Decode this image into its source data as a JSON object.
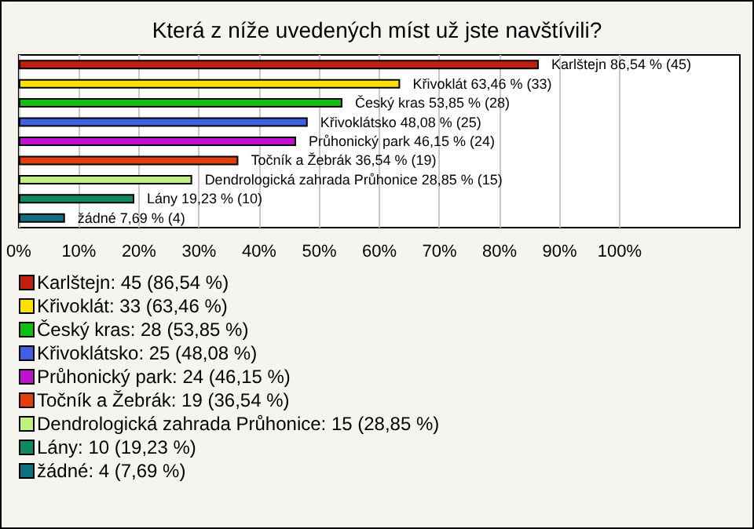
{
  "chart_data": {
    "type": "bar",
    "orientation": "horizontal",
    "title": "Která z níže uvedených míst už jste navštívili?",
    "categories": [
      null,
      null,
      null,
      null,
      null,
      null,
      null,
      null,
      null
    ],
    "xlim": [
      0,
      120
    ],
    "xticks": [
      {
        "value": 0,
        "label": "0%"
      },
      {
        "value": 10,
        "label": "10%"
      },
      {
        "value": 20,
        "label": "20%"
      },
      {
        "value": 30,
        "label": "30%"
      },
      {
        "value": 40,
        "label": "40%"
      },
      {
        "value": 50,
        "label": "50%"
      },
      {
        "value": 60,
        "label": "60%"
      },
      {
        "value": 70,
        "label": "70%"
      },
      {
        "value": 80,
        "label": "80%"
      },
      {
        "value": 90,
        "label": "90%"
      },
      {
        "value": 100,
        "label": "100%"
      }
    ],
    "grid": "x",
    "legend": "bottom",
    "series": [
      {
        "name": "Karlštejn: 45 (86,54 %)",
        "color": "#c0200f",
        "values": [
          86.54,
          null,
          null,
          null,
          null,
          null,
          null,
          null,
          null
        ],
        "value_labels": [
          "Karlštejn 86,54 % (45)",
          null,
          null,
          null,
          null,
          null,
          null,
          null,
          null
        ]
      },
      {
        "name": "Křivoklát: 33 (63,46 %)",
        "color": "#ffe000",
        "values": [
          null,
          63.46,
          null,
          null,
          null,
          null,
          null,
          null,
          null
        ],
        "value_labels": [
          null,
          "Křivoklát 63,46 % (33)",
          null,
          null,
          null,
          null,
          null,
          null,
          null
        ]
      },
      {
        "name": "Český kras: 28 (53,85 %)",
        "color": "#10c010",
        "values": [
          null,
          null,
          53.85,
          null,
          null,
          null,
          null,
          null,
          null
        ],
        "value_labels": [
          null,
          null,
          "Český kras 53,85 % (28)",
          null,
          null,
          null,
          null,
          null,
          null
        ]
      },
      {
        "name": "Křivoklátsko: 25 (48,08 %)",
        "color": "#4060e0",
        "values": [
          null,
          null,
          null,
          48.08,
          null,
          null,
          null,
          null,
          null
        ],
        "value_labels": [
          null,
          null,
          null,
          "Křivoklátsko 48,08 % (25)",
          null,
          null,
          null,
          null,
          null
        ]
      },
      {
        "name": "Průhonický park: 24 (46,15 %)",
        "color": "#c010d0",
        "values": [
          null,
          null,
          null,
          null,
          46.15,
          null,
          null,
          null,
          null
        ],
        "value_labels": [
          null,
          null,
          null,
          null,
          "Průhonický park 46,15 % (24)",
          null,
          null,
          null,
          null
        ]
      },
      {
        "name": "Točník a Žebrák: 19 (36,54 %)",
        "color": "#e04010",
        "values": [
          null,
          null,
          null,
          null,
          null,
          36.54,
          null,
          null,
          null
        ],
        "value_labels": [
          null,
          null,
          null,
          null,
          null,
          "Točník a Žebrák 36,54 % (19)",
          null,
          null,
          null
        ]
      },
      {
        "name": "Dendrologická zahrada Průhonice: 15 (28,85 %)",
        "color": "#c0f080",
        "values": [
          null,
          null,
          null,
          null,
          null,
          null,
          28.85,
          null,
          null
        ],
        "value_labels": [
          null,
          null,
          null,
          null,
          null,
          null,
          "Dendrologická zahrada Průhonice 28,85 % (15)",
          null,
          null
        ]
      },
      {
        "name": "Lány: 10 (19,23 %)",
        "color": "#108860",
        "values": [
          null,
          null,
          null,
          null,
          null,
          null,
          null,
          19.23,
          null
        ],
        "value_labels": [
          null,
          null,
          null,
          null,
          null,
          null,
          null,
          "Lány 19,23 % (10)",
          null
        ]
      },
      {
        "name": "žádné: 4 (7,69 %)",
        "color": "#107080",
        "values": [
          null,
          null,
          null,
          null,
          null,
          null,
          null,
          null,
          7.69
        ],
        "value_labels": [
          null,
          null,
          null,
          null,
          null,
          null,
          null,
          null,
          "žádné 7,69 % (4)"
        ]
      }
    ]
  }
}
